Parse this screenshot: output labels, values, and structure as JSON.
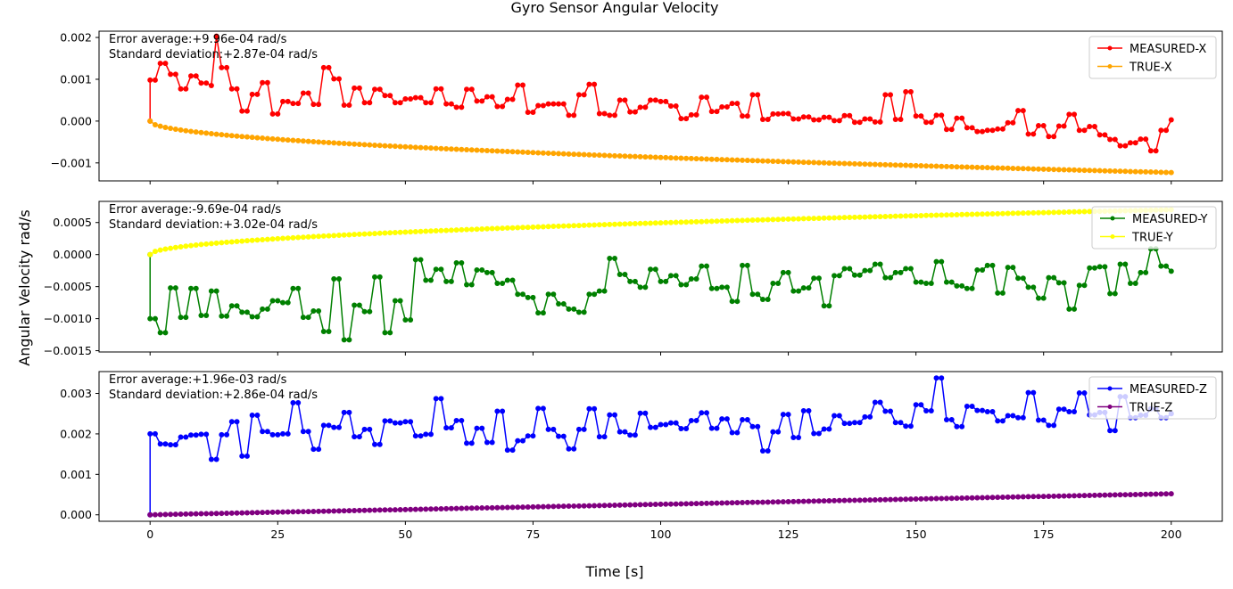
{
  "figure": {
    "title": "Gyro Sensor Angular Velocity",
    "xlabel": "Time [s]",
    "ylabel": "Angular Velocity rad/s"
  },
  "chart_data": [
    {
      "type": "line",
      "title": "",
      "xlim": [
        -10,
        210
      ],
      "ylim": [
        -0.00143,
        0.00215
      ],
      "xticks": [
        0,
        25,
        50,
        75,
        100,
        125,
        150,
        175,
        200
      ],
      "yticks": [
        -0.001,
        0.0,
        0.001,
        0.002
      ],
      "ytick_labels": [
        "−0.001",
        "0.000",
        "0.001",
        "0.002"
      ],
      "show_xtick_labels": false,
      "annotations": [
        "Error average:+9.96e-04 rad/s",
        "Standard deviation:+2.87e-04 rad/s"
      ],
      "legend_position": "upper right",
      "series": [
        {
          "name": "MEASURED-X",
          "color": "#ff0000",
          "x": [
            0,
            2,
            4,
            6,
            8,
            10,
            12,
            13,
            14,
            16,
            18,
            20,
            22,
            24,
            26,
            28,
            30,
            32,
            34,
            36,
            38,
            40,
            42,
            44,
            46,
            48,
            50,
            52,
            54,
            56,
            58,
            60,
            62,
            64,
            66,
            68,
            70,
            72,
            74,
            76,
            78,
            80,
            82,
            84,
            86,
            88,
            90,
            92,
            94,
            96,
            98,
            100,
            102,
            104,
            106,
            108,
            110,
            112,
            114,
            116,
            118,
            120,
            122,
            124,
            126,
            128,
            130,
            132,
            134,
            136,
            138,
            140,
            142,
            144,
            146,
            148,
            150,
            152,
            154,
            156,
            158,
            160,
            162,
            164,
            166,
            168,
            170,
            172,
            174,
            176,
            178,
            180,
            182,
            184,
            186,
            188,
            190,
            192,
            194,
            196,
            198,
            200
          ],
          "y": [
            0.00098,
            0.00138,
            0.00112,
            0.00077,
            0.00108,
            0.00091,
            0.00085,
            0.00203,
            0.00128,
            0.00077,
            0.00024,
            0.00064,
            0.00092,
            0.00017,
            0.00047,
            0.00042,
            0.00067,
            0.0004,
            0.00128,
            0.00101,
            0.00038,
            0.00079,
            0.00044,
            0.00076,
            0.00061,
            0.00044,
            0.00053,
            0.00056,
            0.00044,
            0.00077,
            0.00041,
            0.00033,
            0.00076,
            0.00048,
            0.00058,
            0.00035,
            0.00052,
            0.00086,
            0.00021,
            0.00037,
            0.00041,
            0.00041,
            0.00014,
            0.00063,
            0.00088,
            0.00018,
            0.00014,
            0.0005,
            0.00022,
            0.00033,
            0.0005,
            0.00047,
            0.00036,
            6e-05,
            0.00015,
            0.00057,
            0.00023,
            0.00034,
            0.00042,
            0.00012,
            0.00063,
            4e-05,
            0.00017,
            0.00018,
            5e-05,
            0.0001,
            3e-05,
            9e-05,
            1e-05,
            0.00013,
            -3e-05,
            5e-05,
            -2e-05,
            0.00063,
            4e-05,
            0.0007,
            0.00012,
            -3e-05,
            0.00014,
            -0.0002,
            7e-05,
            -0.00016,
            -0.00025,
            -0.00022,
            -0.00019,
            -4e-05,
            0.00025,
            -0.00031,
            -0.00011,
            -0.00037,
            -0.00012,
            0.00016,
            -0.00022,
            -0.00013,
            -0.00033,
            -0.00044,
            -0.00059,
            -0.00052,
            -0.00043,
            -0.00071,
            -0.00022,
            3e-05
          ],
          "start": [
            0,
            0
          ]
        },
        {
          "name": "TRUE-X",
          "color": "#ffa500",
          "x": [
            0,
            200
          ],
          "y": [
            0.0,
            -0.00123
          ],
          "curve": "sqrt"
        }
      ]
    },
    {
      "type": "line",
      "title": "",
      "xlim": [
        -10,
        210
      ],
      "ylim": [
        -0.00152,
        0.00083
      ],
      "xticks": [
        0,
        25,
        50,
        75,
        100,
        125,
        150,
        175,
        200
      ],
      "yticks": [
        -0.0015,
        -0.001,
        -0.0005,
        0.0,
        0.0005
      ],
      "ytick_labels": [
        "−0.0015",
        "−0.0010",
        "−0.0005",
        "0.0000",
        "0.0005"
      ],
      "show_xtick_labels": false,
      "annotations": [
        "Error average:-9.69e-04 rad/s",
        "Standard deviation:+3.02e-04 rad/s"
      ],
      "legend_position": "upper right",
      "series": [
        {
          "name": "MEASURED-Y",
          "color": "#008000",
          "x": [
            0,
            2,
            4,
            6,
            8,
            10,
            12,
            14,
            16,
            18,
            20,
            22,
            24,
            26,
            28,
            30,
            32,
            34,
            36,
            38,
            40,
            42,
            44,
            46,
            48,
            50,
            52,
            54,
            56,
            58,
            60,
            62,
            64,
            66,
            68,
            70,
            72,
            74,
            76,
            78,
            80,
            82,
            84,
            86,
            88,
            90,
            92,
            94,
            96,
            98,
            100,
            102,
            104,
            106,
            108,
            110,
            112,
            114,
            116,
            118,
            120,
            122,
            124,
            126,
            128,
            130,
            132,
            134,
            136,
            138,
            140,
            142,
            144,
            146,
            148,
            150,
            152,
            154,
            156,
            158,
            160,
            162,
            164,
            166,
            168,
            170,
            172,
            174,
            176,
            178,
            180,
            182,
            184,
            186,
            188,
            190,
            192,
            194,
            196,
            198,
            200
          ],
          "y": [
            -0.001,
            -0.00122,
            -0.00052,
            -0.00098,
            -0.00053,
            -0.00095,
            -0.00057,
            -0.00096,
            -0.0008,
            -0.0009,
            -0.00097,
            -0.00085,
            -0.00072,
            -0.00075,
            -0.00053,
            -0.00098,
            -0.00088,
            -0.0012,
            -0.00038,
            -0.00133,
            -0.00079,
            -0.00089,
            -0.00035,
            -0.00122,
            -0.00072,
            -0.00102,
            -8e-05,
            -0.0004,
            -0.00023,
            -0.00042,
            -0.00013,
            -0.00047,
            -0.00024,
            -0.00028,
            -0.00045,
            -0.0004,
            -0.00062,
            -0.00067,
            -0.00091,
            -0.00062,
            -0.00077,
            -0.00085,
            -0.0009,
            -0.00062,
            -0.00057,
            -6e-05,
            -0.00031,
            -0.00042,
            -0.00051,
            -0.00023,
            -0.00042,
            -0.00033,
            -0.00047,
            -0.00038,
            -0.00018,
            -0.00053,
            -0.00051,
            -0.00073,
            -0.00017,
            -0.00062,
            -0.0007,
            -0.00045,
            -0.00028,
            -0.00057,
            -0.00052,
            -0.00037,
            -0.0008,
            -0.00033,
            -0.00022,
            -0.00032,
            -0.00025,
            -0.00015,
            -0.00036,
            -0.00028,
            -0.00022,
            -0.00043,
            -0.00045,
            -0.00011,
            -0.00043,
            -0.00049,
            -0.00053,
            -0.00024,
            -0.00017,
            -0.0006,
            -0.0002,
            -0.00037,
            -0.00051,
            -0.00068,
            -0.00036,
            -0.00044,
            -0.00085,
            -0.00048,
            -0.00021,
            -0.00019,
            -0.00061,
            -0.00015,
            -0.00045,
            -0.00028,
            9e-05,
            -0.00018,
            -0.00026
          ],
          "start": [
            0,
            0
          ]
        },
        {
          "name": "TRUE-Y",
          "color": "#ffff00",
          "x": [
            0,
            200
          ],
          "y": [
            0.0,
            0.0007
          ],
          "curve": "sqrt"
        }
      ]
    },
    {
      "type": "line",
      "title": "",
      "xlim": [
        -10,
        210
      ],
      "ylim": [
        -0.00016,
        0.00354
      ],
      "xticks": [
        0,
        25,
        50,
        75,
        100,
        125,
        150,
        175,
        200
      ],
      "xtick_labels": [
        "0",
        "25",
        "50",
        "75",
        "100",
        "125",
        "150",
        "175",
        "200"
      ],
      "yticks": [
        0.0,
        0.001,
        0.002,
        0.003
      ],
      "ytick_labels": [
        "0.000",
        "0.001",
        "0.002",
        "0.003"
      ],
      "show_xtick_labels": true,
      "annotations": [
        "Error average:+1.96e-03 rad/s",
        "Standard deviation:+2.86e-04 rad/s"
      ],
      "legend_position": "upper right",
      "series": [
        {
          "name": "MEASURED-Z",
          "color": "#0000ff",
          "x": [
            0,
            2,
            4,
            6,
            8,
            10,
            12,
            14,
            16,
            18,
            20,
            22,
            24,
            26,
            28,
            30,
            32,
            34,
            36,
            38,
            40,
            42,
            44,
            46,
            48,
            50,
            52,
            54,
            56,
            58,
            60,
            62,
            64,
            66,
            68,
            70,
            72,
            74,
            76,
            78,
            80,
            82,
            84,
            86,
            88,
            90,
            92,
            94,
            96,
            98,
            100,
            102,
            104,
            106,
            108,
            110,
            112,
            114,
            116,
            118,
            120,
            122,
            124,
            126,
            128,
            130,
            132,
            134,
            136,
            138,
            140,
            142,
            144,
            146,
            148,
            150,
            152,
            154,
            156,
            158,
            160,
            162,
            164,
            166,
            168,
            170,
            172,
            174,
            176,
            178,
            180,
            182,
            184,
            186,
            188,
            190,
            192,
            194,
            196,
            198,
            200
          ],
          "y": [
            0.002,
            0.00175,
            0.00173,
            0.00192,
            0.00197,
            0.00199,
            0.00137,
            0.00198,
            0.0023,
            0.00145,
            0.00246,
            0.00206,
            0.00198,
            0.002,
            0.00277,
            0.00206,
            0.00162,
            0.00221,
            0.00216,
            0.00253,
            0.00193,
            0.00211,
            0.00174,
            0.00232,
            0.00227,
            0.0023,
            0.00195,
            0.00199,
            0.00287,
            0.00215,
            0.00233,
            0.00177,
            0.00214,
            0.00179,
            0.00256,
            0.0016,
            0.00183,
            0.00195,
            0.00263,
            0.00211,
            0.00194,
            0.00163,
            0.00211,
            0.00262,
            0.00193,
            0.00247,
            0.00205,
            0.00197,
            0.00251,
            0.00216,
            0.00223,
            0.00227,
            0.00213,
            0.00233,
            0.00252,
            0.00214,
            0.00237,
            0.00203,
            0.00235,
            0.00218,
            0.00158,
            0.00205,
            0.00248,
            0.00191,
            0.00257,
            0.00201,
            0.00212,
            0.00245,
            0.00226,
            0.00228,
            0.00242,
            0.00278,
            0.00256,
            0.00228,
            0.00219,
            0.00272,
            0.00257,
            0.00338,
            0.00235,
            0.00218,
            0.00268,
            0.00258,
            0.00255,
            0.00232,
            0.00245,
            0.0024,
            0.00302,
            0.00234,
            0.00221,
            0.00261,
            0.00255,
            0.00301,
            0.00247,
            0.00253,
            0.00208,
            0.00292,
            0.0024,
            0.00246,
            0.00262,
            0.0024,
            0.0025
          ],
          "start": [
            0,
            0
          ]
        },
        {
          "name": "TRUE-Z",
          "color": "#800080",
          "x": [
            0,
            200
          ],
          "y": [
            0.0,
            0.00052
          ],
          "curve": "linear"
        }
      ]
    }
  ]
}
